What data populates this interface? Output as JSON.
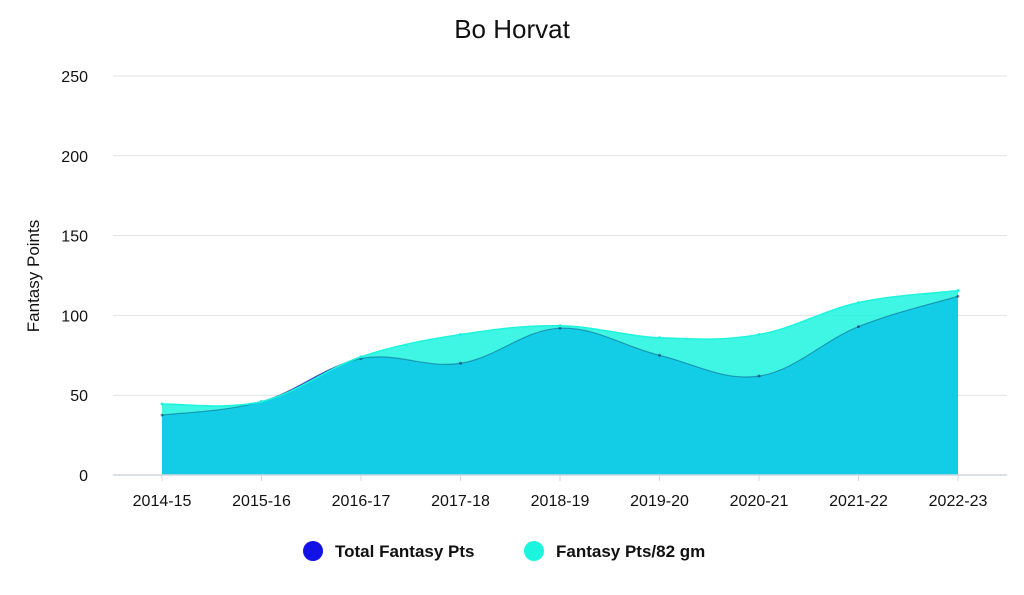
{
  "chart_data": {
    "type": "area",
    "title": "Bo Horvat",
    "xlabel": "",
    "ylabel": "Fantasy Points",
    "categories": [
      "2014-15",
      "2015-16",
      "2016-17",
      "2017-18",
      "2018-19",
      "2019-20",
      "2020-21",
      "2021-22",
      "2022-23"
    ],
    "series": [
      {
        "name": "Total Fantasy Pts",
        "values": [
          37.5,
          46,
          73,
          70,
          92,
          75,
          62,
          93,
          112
        ],
        "color": "#1212e6"
      },
      {
        "name": "Fantasy Pts/82 gm",
        "values": [
          44.5,
          46,
          74,
          88,
          93.5,
          86,
          88,
          108,
          115.5
        ],
        "color": "#1cf5de"
      }
    ],
    "ylim": [
      0,
      250
    ],
    "yticks": [
      0,
      50,
      100,
      150,
      200,
      250
    ],
    "grid": true,
    "legend_position": "bottom-center",
    "overlap_fill_color": "#13cde6"
  }
}
